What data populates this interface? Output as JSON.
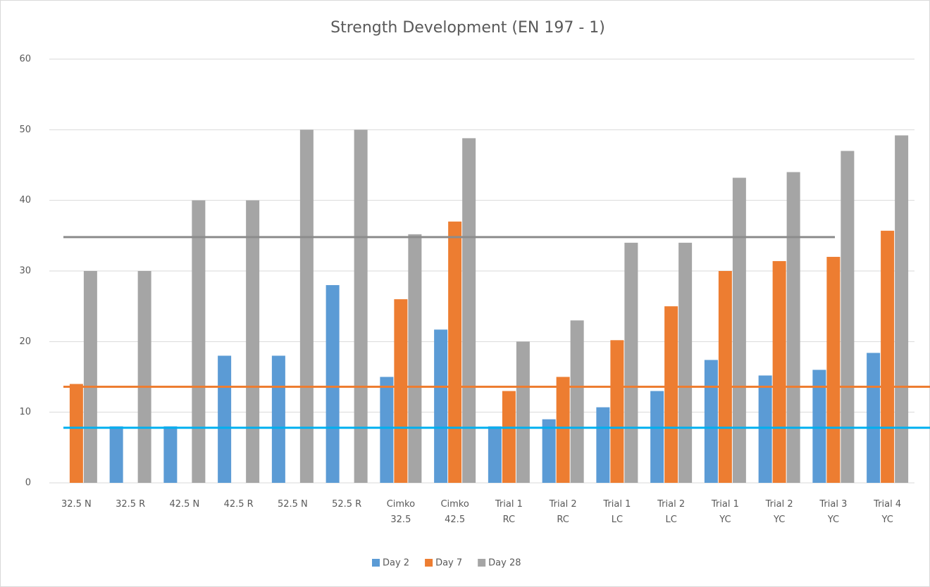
{
  "chart_data": {
    "type": "bar",
    "title": "Strength Development (EN 197 - 1)",
    "categories": [
      "32.5 N",
      "32.5 R",
      "42.5 N",
      "42.5 R",
      "52.5 N",
      "52.5 R",
      "Cimko\n32.5",
      "Cimko\n42.5",
      "Trial 1\nRC",
      "Trial 2\nRC",
      "Trial 1\nLC",
      "Trial 2\nLC",
      "Trial 1\nYC",
      "Trial 2\nYC",
      "Trial 3\nYC",
      "Trial 4\nYC"
    ],
    "series": [
      {
        "name": "Day 2",
        "color": "#5b9bd5",
        "values": [
          null,
          8,
          8,
          18,
          18,
          28,
          15,
          21.7,
          8,
          9,
          10.7,
          13,
          17.4,
          15.2,
          16,
          18.4
        ]
      },
      {
        "name": "Day 7",
        "color": "#ed7d31",
        "values": [
          14,
          null,
          null,
          null,
          null,
          null,
          26,
          37,
          13,
          15,
          20.2,
          25,
          30,
          31.4,
          32,
          35.7
        ]
      },
      {
        "name": "Day 28",
        "color": "#a5a5a5",
        "values": [
          30,
          30,
          40,
          40,
          50,
          50,
          35.2,
          48.8,
          20,
          23,
          34,
          34,
          43.2,
          44,
          47,
          49.2
        ]
      }
    ],
    "reference_lines": [
      {
        "value": 34.8,
        "color": "#8c8c8c"
      },
      {
        "value": 13.6,
        "color": "#ed7d31"
      },
      {
        "value": 7.8,
        "color": "#00b0f0"
      }
    ],
    "ylim": [
      0,
      60
    ],
    "yticks": [
      0,
      10,
      20,
      30,
      40,
      50,
      60
    ],
    "grid": true,
    "legend": "bottom"
  }
}
